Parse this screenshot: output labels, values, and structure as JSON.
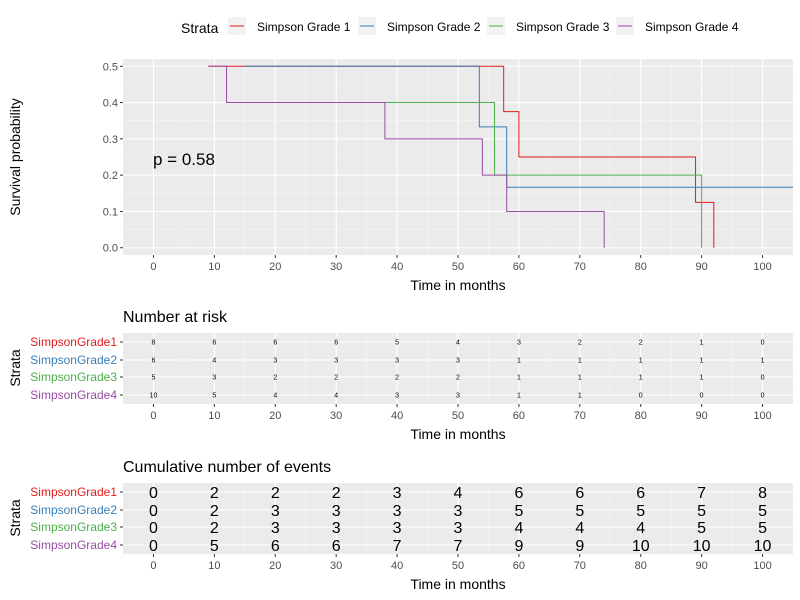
{
  "chart_data": [
    {
      "type": "line",
      "legend_title": "Strata",
      "legend_position": "top",
      "xlabel": "Time in months",
      "ylabel": "Survival probability",
      "xticks": [
        0,
        10,
        20,
        30,
        40,
        50,
        60,
        70,
        80,
        90,
        100
      ],
      "yticks": [
        "0.0",
        "0.1",
        "0.2",
        "0.3",
        "0.4",
        "0.5"
      ],
      "xlim": [
        -5,
        105
      ],
      "ylim": [
        -0.02,
        0.52
      ],
      "annotation": "p = 0.58",
      "series": [
        {
          "name": "Simpson Grade 1",
          "color": "#e41a1c",
          "steps": [
            [
              9,
              0.5
            ],
            [
              57.5,
              0.375
            ],
            [
              60,
              0.25
            ],
            [
              89,
              0.125
            ],
            [
              92,
              0.0
            ]
          ]
        },
        {
          "name": "Simpson Grade 2",
          "color": "#377eb8",
          "steps": [
            [
              15,
              0.5
            ],
            [
              53.5,
              0.333
            ],
            [
              58,
              0.1667
            ],
            [
              105,
              0.1667
            ]
          ]
        },
        {
          "name": "Simpson Grade 3",
          "color": "#4daf4a",
          "steps": [
            [
              17,
              0.4
            ],
            [
              56,
              0.2
            ],
            [
              90,
              0.0
            ]
          ]
        },
        {
          "name": "Simpson Grade 4",
          "color": "#984ea3",
          "steps": [
            [
              9,
              0.5
            ],
            [
              12,
              0.4
            ],
            [
              38,
              0.3
            ],
            [
              54,
              0.2
            ],
            [
              58,
              0.1
            ],
            [
              74,
              0.0
            ]
          ]
        }
      ]
    },
    {
      "type": "table",
      "title": "Number at risk",
      "xlabel": "Time in months",
      "ylabel": "Strata",
      "xticks": [
        0,
        10,
        20,
        30,
        40,
        50,
        60,
        70,
        80,
        90,
        100
      ],
      "rows": [
        {
          "name": "SimpsonGrade1",
          "color": "#e41a1c",
          "values": [
            8,
            6,
            6,
            6,
            5,
            4,
            3,
            2,
            2,
            1,
            0
          ]
        },
        {
          "name": "SimpsonGrade2",
          "color": "#377eb8",
          "values": [
            6,
            4,
            3,
            3,
            3,
            3,
            1,
            1,
            1,
            1,
            1
          ]
        },
        {
          "name": "SimpsonGrade3",
          "color": "#4daf4a",
          "values": [
            5,
            3,
            2,
            2,
            2,
            2,
            1,
            1,
            1,
            1,
            0
          ]
        },
        {
          "name": "SimpsonGrade4",
          "color": "#984ea3",
          "values": [
            10,
            5,
            4,
            4,
            3,
            3,
            1,
            1,
            0,
            0,
            0
          ]
        }
      ]
    },
    {
      "type": "table",
      "title": "Cumulative number of events",
      "xlabel": "Time in months",
      "ylabel": "Strata",
      "xticks": [
        0,
        10,
        20,
        30,
        40,
        50,
        60,
        70,
        80,
        90,
        100
      ],
      "rows": [
        {
          "name": "SimpsonGrade1",
          "color": "#e41a1c",
          "values": [
            0,
            2,
            2,
            2,
            3,
            4,
            6,
            6,
            6,
            7,
            8
          ]
        },
        {
          "name": "SimpsonGrade2",
          "color": "#377eb8",
          "values": [
            0,
            2,
            3,
            3,
            3,
            3,
            5,
            5,
            5,
            5,
            5
          ]
        },
        {
          "name": "SimpsonGrade3",
          "color": "#4daf4a",
          "values": [
            0,
            2,
            3,
            3,
            3,
            3,
            4,
            4,
            4,
            5,
            5
          ]
        },
        {
          "name": "SimpsonGrade4",
          "color": "#984ea3",
          "values": [
            0,
            5,
            6,
            6,
            7,
            7,
            9,
            9,
            10,
            10,
            10
          ]
        }
      ]
    }
  ]
}
